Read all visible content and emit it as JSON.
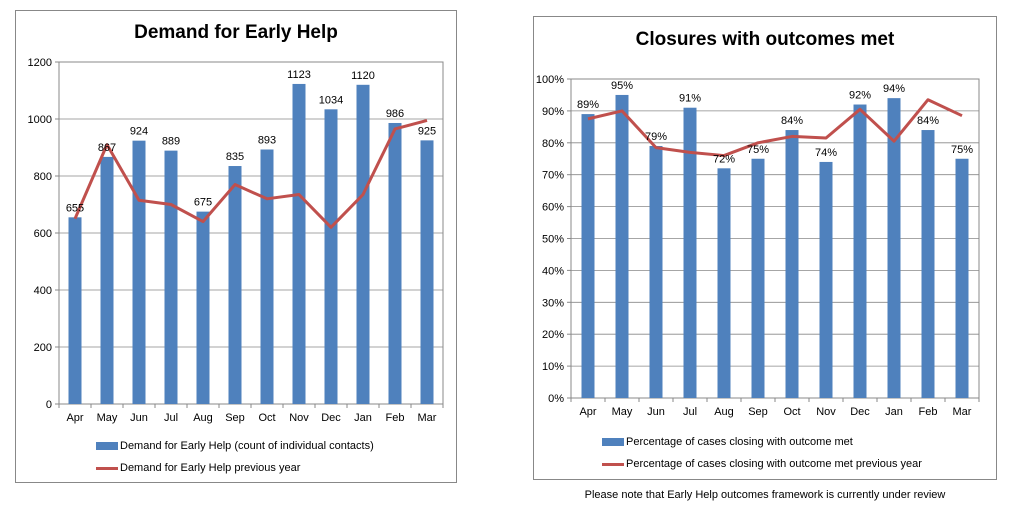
{
  "chart_data": [
    {
      "type": "bar",
      "title": "Demand for Early Help",
      "categories": [
        "Apr",
        "May",
        "Jun",
        "Jul",
        "Aug",
        "Sep",
        "Oct",
        "Nov",
        "Dec",
        "Jan",
        "Feb",
        "Mar"
      ],
      "ylim": [
        0,
        1200
      ],
      "yticks": [
        0,
        200,
        400,
        600,
        800,
        1000,
        1200
      ],
      "ytick_labels": [
        "0",
        "200",
        "400",
        "600",
        "800",
        "1000",
        "1200"
      ],
      "grid": true,
      "legend_position": "bottom",
      "series": [
        {
          "name": "Demand for Early Help (count of individual contacts)",
          "type": "bar",
          "color": "#4f81bd",
          "values": [
            655,
            867,
            924,
            889,
            675,
            835,
            893,
            1123,
            1034,
            1120,
            986,
            925
          ],
          "data_labels": [
            "655",
            "867",
            "924",
            "889",
            "675",
            "835",
            "893",
            "1123",
            "1034",
            "1120",
            "986",
            "925"
          ]
        },
        {
          "name": "Demand for Early Help previous year",
          "type": "line",
          "color": "#c0504d",
          "values": [
            650,
            910,
            715,
            700,
            640,
            770,
            720,
            735,
            620,
            735,
            965,
            995
          ]
        }
      ]
    },
    {
      "type": "bar",
      "title": "Closures with outcomes met",
      "categories": [
        "Apr",
        "May",
        "Jun",
        "Jul",
        "Aug",
        "Sep",
        "Oct",
        "Nov",
        "Dec",
        "Jan",
        "Feb",
        "Mar"
      ],
      "ylim": [
        0,
        100
      ],
      "yticks": [
        0,
        10,
        20,
        30,
        40,
        50,
        60,
        70,
        80,
        90,
        100
      ],
      "ytick_labels": [
        "0%",
        "10%",
        "20%",
        "30%",
        "40%",
        "50%",
        "60%",
        "70%",
        "80%",
        "90%",
        "100%"
      ],
      "grid": true,
      "legend_position": "bottom",
      "series": [
        {
          "name": "Percentage of cases closing with outcome met",
          "type": "bar",
          "color": "#4f81bd",
          "values": [
            89,
            95,
            79,
            91,
            72,
            75,
            84,
            74,
            92,
            94,
            84,
            75
          ],
          "data_labels": [
            "89%",
            "95%",
            "79%",
            "91%",
            "72%",
            "75%",
            "84%",
            "74%",
            "92%",
            "94%",
            "84%",
            "75%"
          ]
        },
        {
          "name": "Percentage of cases closing with outcome met previous year",
          "type": "line",
          "color": "#c0504d",
          "values": [
            87.5,
            90,
            78.5,
            77,
            76,
            80,
            82,
            81.5,
            90.5,
            80.5,
            93.5,
            88.5
          ]
        }
      ]
    }
  ],
  "footnote": "Please note that Early Help outcomes framework is currently under review"
}
